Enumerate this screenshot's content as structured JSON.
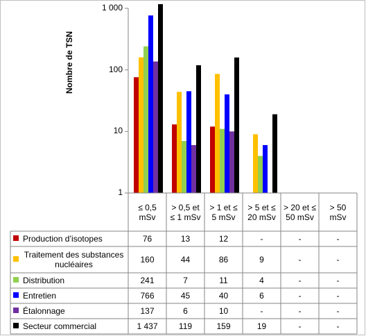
{
  "chart_data": {
    "type": "bar",
    "y_label": "Nombre de TSN",
    "log_scale": true,
    "categories": [
      "≤ 0,5 mSv",
      "> 0,5 et ≤ 1 mSv",
      "> 1 et ≤ 5 mSv",
      "> 5 et ≤ 20 mSv",
      "> 20 et ≤ 50 mSv",
      "> 50 mSv"
    ],
    "ylim": [
      1,
      1000
    ],
    "yticks": [
      1,
      10,
      100,
      {
        "value": 1000,
        "label": "1 000"
      }
    ],
    "series": [
      {
        "name": "Production d’isotopes",
        "color": "#c00000",
        "values": [
          76,
          13,
          12,
          null,
          null,
          null
        ],
        "value_labels": [
          "76",
          "13",
          "12",
          "-",
          "-",
          "-"
        ]
      },
      {
        "name": "Traitement des substances nucléaires",
        "color": "#ffc000",
        "values": [
          160,
          44,
          86,
          9,
          null,
          null
        ],
        "value_labels": [
          "160",
          "44",
          "86",
          "9",
          "-",
          "-"
        ]
      },
      {
        "name": "Distribution",
        "color": "#92d050",
        "values": [
          241,
          7,
          11,
          4,
          null,
          null
        ],
        "value_labels": [
          "241",
          "7",
          "11",
          "4",
          "-",
          "-"
        ]
      },
      {
        "name": "Entretien",
        "color": "#0000ff",
        "values": [
          766,
          45,
          40,
          6,
          null,
          null
        ],
        "value_labels": [
          "766",
          "45",
          "40",
          "6",
          "-",
          "-"
        ]
      },
      {
        "name": "Étalonnage",
        "color": "#7030a0",
        "values": [
          137,
          6,
          10,
          null,
          null,
          null
        ],
        "value_labels": [
          "137",
          "6",
          "10",
          "-",
          "-",
          "-"
        ]
      },
      {
        "name": "Secteur commercial",
        "color": "#000000",
        "values": [
          1437,
          119,
          159,
          19,
          null,
          null
        ],
        "value_labels": [
          "1 437",
          "119",
          "159",
          "19",
          "-",
          "-"
        ]
      }
    ]
  }
}
